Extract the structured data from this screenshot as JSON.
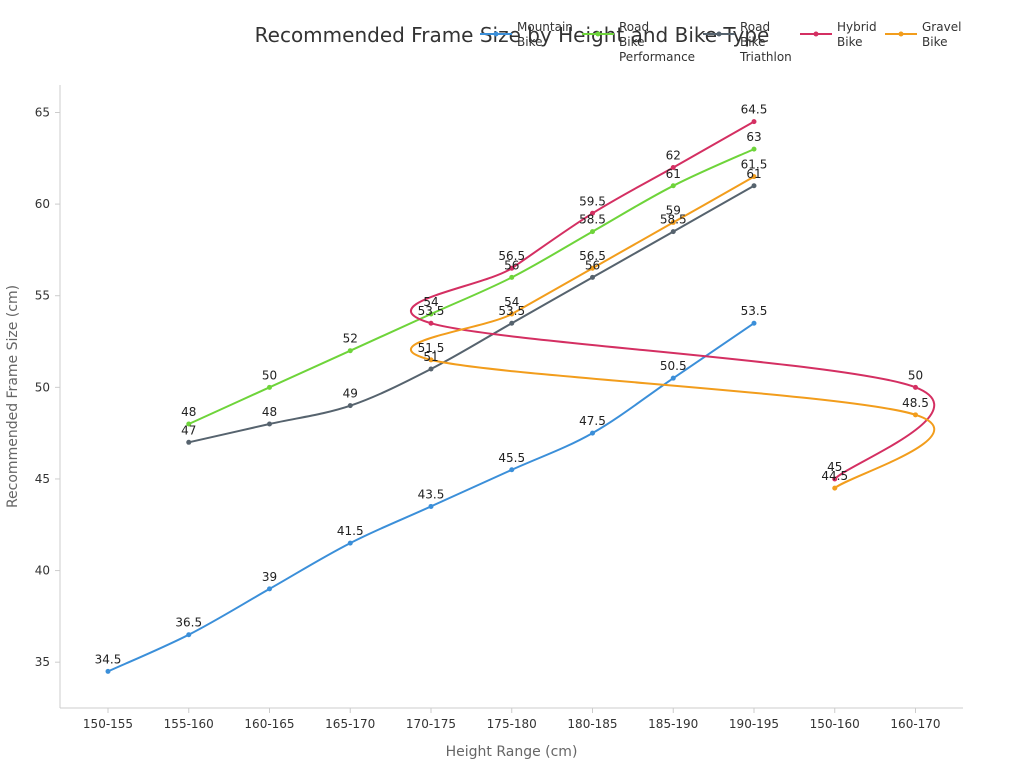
{
  "chart_data": {
    "type": "line",
    "title": "Recommended Frame Size by Height and Bike Type",
    "xlabel": "Height Range (cm)",
    "ylabel": "Recommended Frame Size (cm)",
    "categories": [
      "150-155",
      "155-160",
      "160-165",
      "165-170",
      "170-175",
      "175-180",
      "180-185",
      "185-190",
      "190-195",
      "150-160",
      "160-170"
    ],
    "ylim": [
      32.5,
      66.5
    ],
    "yticks": [
      35,
      40,
      45,
      50,
      55,
      60,
      65
    ],
    "grid": false,
    "legend": "top",
    "series": [
      {
        "name": "Mountain Bike",
        "legend_lines": [
          "Mountain",
          "Bike"
        ],
        "color": "#3b8fd9",
        "points": [
          {
            "x": "150-155",
            "y": 34.5,
            "label": "34.5"
          },
          {
            "x": "155-160",
            "y": 36.5,
            "label": "36.5"
          },
          {
            "x": "160-165",
            "y": 39,
            "label": "39"
          },
          {
            "x": "165-170",
            "y": 41.5,
            "label": "41.5"
          },
          {
            "x": "170-175",
            "y": 43.5,
            "label": "43.5"
          },
          {
            "x": "175-180",
            "y": 45.5,
            "label": "45.5"
          },
          {
            "x": "180-185",
            "y": 47.5,
            "label": "47.5"
          },
          {
            "x": "185-190",
            "y": 50.5,
            "label": "50.5"
          },
          {
            "x": "190-195",
            "y": 53.5,
            "label": "53.5"
          }
        ]
      },
      {
        "name": "Road Bike Performance",
        "legend_lines": [
          "Road",
          "Bike",
          "Performance"
        ],
        "color": "#6ed43a",
        "points": [
          {
            "x": "155-160",
            "y": 48,
            "label": "48"
          },
          {
            "x": "160-165",
            "y": 50,
            "label": "50"
          },
          {
            "x": "165-170",
            "y": 52,
            "label": "52"
          },
          {
            "x": "170-175",
            "y": 54,
            "label": "54"
          },
          {
            "x": "175-180",
            "y": 56,
            "label": "56"
          },
          {
            "x": "180-185",
            "y": 58.5,
            "label": "58.5"
          },
          {
            "x": "185-190",
            "y": 61,
            "label": "61"
          },
          {
            "x": "190-195",
            "y": 63,
            "label": "63"
          }
        ]
      },
      {
        "name": "Road Bike Triathlon",
        "legend_lines": [
          "Road",
          "Bike",
          "Triathlon"
        ],
        "color": "#56636e",
        "points": [
          {
            "x": "155-160",
            "y": 47,
            "label": "47"
          },
          {
            "x": "160-165",
            "y": 48,
            "label": "48"
          },
          {
            "x": "165-170",
            "y": 49,
            "label": "49"
          },
          {
            "x": "170-175",
            "y": 51,
            "label": "51"
          },
          {
            "x": "175-180",
            "y": 53.5,
            "label": "53.5"
          },
          {
            "x": "180-185",
            "y": 56,
            "label": "56"
          },
          {
            "x": "185-190",
            "y": 58.5,
            "label": "58.5"
          },
          {
            "x": "190-195",
            "y": 61,
            "label": "61"
          }
        ]
      },
      {
        "name": "Hybrid Bike",
        "legend_lines": [
          "Hybrid",
          "Bike"
        ],
        "color": "#d42f62",
        "points": [
          {
            "x": "150-160",
            "y": 45,
            "label": "45"
          },
          {
            "x": "160-170",
            "y": 50,
            "label": "50"
          },
          {
            "x": "170-175",
            "y": 53.5,
            "label": "53.5"
          },
          {
            "x": "175-180",
            "y": 56.5,
            "label": "56.5"
          },
          {
            "x": "180-185",
            "y": 59.5,
            "label": "59.5"
          },
          {
            "x": "185-190",
            "y": 62,
            "label": "62"
          },
          {
            "x": "190-195",
            "y": 64.5,
            "label": "64.5"
          }
        ]
      },
      {
        "name": "Gravel Bike",
        "legend_lines": [
          "Gravel",
          "Bike"
        ],
        "color": "#f29d1c",
        "points": [
          {
            "x": "150-160",
            "y": 44.5,
            "label": "44.5"
          },
          {
            "x": "160-170",
            "y": 48.5,
            "label": "48.5"
          },
          {
            "x": "170-175",
            "y": 51.5,
            "label": "51.5"
          },
          {
            "x": "175-180",
            "y": 54,
            "label": "54"
          },
          {
            "x": "180-185",
            "y": 56.5,
            "label": "56.5"
          },
          {
            "x": "185-190",
            "y": 59,
            "label": "59"
          },
          {
            "x": "190-195",
            "y": 61.5,
            "label": "61.5"
          }
        ]
      }
    ]
  }
}
